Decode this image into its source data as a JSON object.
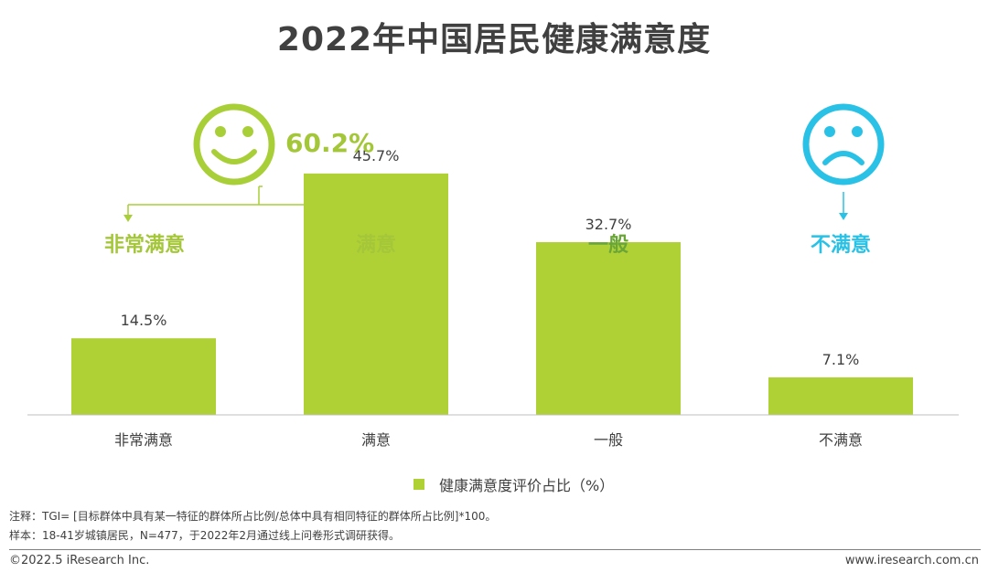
{
  "title": "2022年中国居民健康满意度",
  "summary": {
    "satisfied_total": "60.2%",
    "satisfied_icon": "smiley-face-icon",
    "dissatisfied_icon": "frowning-face-icon"
  },
  "top_labels": [
    "非常满意",
    "满意",
    "一般",
    "不满意"
  ],
  "colors": {
    "bar": "#b0d136",
    "green_text": "#a4c639",
    "green_icon": "#a9cf38",
    "dark_green": "#6aa637",
    "cyan": "#29c2e6",
    "axis": "#bfbfbf",
    "text": "#404040"
  },
  "chart_data": {
    "type": "bar",
    "categories": [
      "非常满意",
      "满意",
      "一般",
      "不满意"
    ],
    "series": [
      {
        "name": "健康满意度评价占比（%）",
        "values": [
          14.5,
          45.7,
          32.7,
          7.1
        ]
      }
    ],
    "data_labels": [
      "14.5%",
      "45.7%",
      "32.7%",
      "7.1%"
    ],
    "ylim": [
      0,
      50
    ],
    "grid": false,
    "legend": "bottom"
  },
  "legend": {
    "label": "健康满意度评价占比（%）"
  },
  "notes": {
    "note1": "注释：TGI= [目标群体中具有某一特征的群体所占比例/总体中具有相同特征的群体所占比例]*100。",
    "note2": "样本：18-41岁城镇居民，N=477，于2022年2月通过线上问卷形式调研获得。"
  },
  "footer": {
    "copyright": "©2022.5 iResearch Inc.",
    "url": "www.iresearch.com.cn"
  }
}
